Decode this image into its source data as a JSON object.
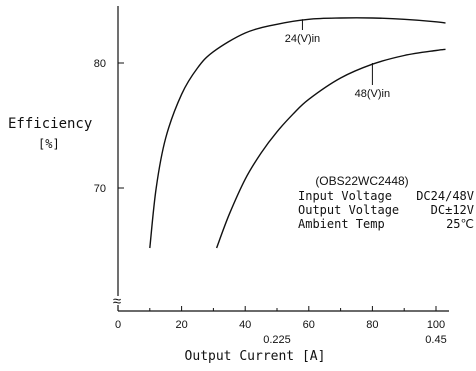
{
  "chart_data": {
    "type": "line",
    "xlabel": "Output Current [A]",
    "ylabel": "Efficiency",
    "ylabel_unit": "[%]",
    "xlim": [
      0,
      105
    ],
    "ylim": [
      60,
      85
    ],
    "x_ticks": [
      0,
      20,
      40,
      60,
      80,
      100
    ],
    "y_ticks": [
      70,
      80
    ],
    "secondary_x_ticks": [
      {
        "x": 50,
        "label": "0.225"
      },
      {
        "x": 100,
        "label": "0.45"
      }
    ],
    "axis_break_symbol": "≈",
    "series": [
      {
        "name": "24(V)in",
        "x": [
          10,
          12,
          15,
          20,
          25,
          30,
          40,
          50,
          60,
          70,
          80,
          90,
          100,
          103
        ],
        "y": [
          65.2,
          70.0,
          74.0,
          77.5,
          79.6,
          80.9,
          82.4,
          83.1,
          83.5,
          83.6,
          83.6,
          83.5,
          83.3,
          83.2
        ]
      },
      {
        "name": "48(V)in",
        "x": [
          31,
          35,
          40,
          45,
          50,
          55,
          60,
          70,
          80,
          90,
          100,
          103
        ],
        "y": [
          65.2,
          67.9,
          70.7,
          72.8,
          74.5,
          75.9,
          77.1,
          78.8,
          79.9,
          80.6,
          81.0,
          81.1
        ]
      }
    ],
    "annotations": [
      {
        "text": "24(V)in",
        "x": 58,
        "y": 82.0,
        "pointer_x": 58,
        "pointer_y": 83.5
      },
      {
        "text": "48(V)in",
        "x": 80,
        "y": 77.6,
        "pointer_x": 80,
        "pointer_y": 80.0
      }
    ],
    "info_box": {
      "model": "(OBS22WC2448)",
      "rows": [
        {
          "label": "Input Voltage",
          "value": "DC24/48V"
        },
        {
          "label": "Output Voltage",
          "value": "DC±12V"
        },
        {
          "label": "Ambient Temp",
          "value": "25℃"
        }
      ]
    }
  }
}
